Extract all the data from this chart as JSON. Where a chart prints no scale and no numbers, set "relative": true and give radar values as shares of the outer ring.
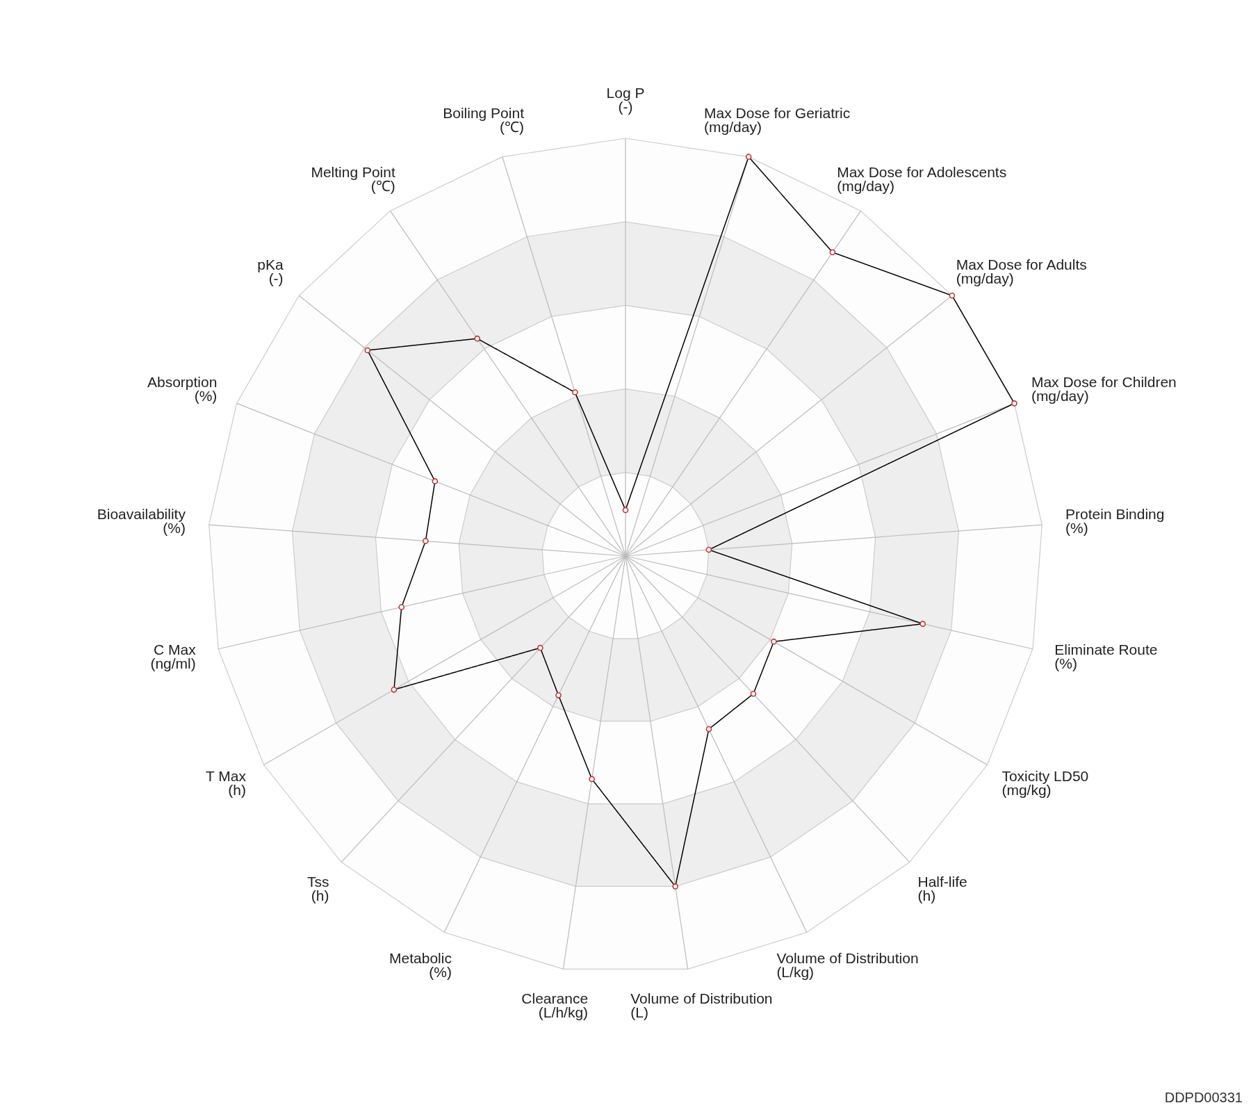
{
  "chart_data": {
    "type": "radar",
    "relative": true,
    "grid": true,
    "marker": "circle",
    "line_style": "solid",
    "categories": [
      "Log P\n(-)",
      "Max Dose for Geriatric\n(mg/day)",
      "Max Dose for Adolescents\n(mg/day)",
      "Max Dose for Adults\n(mg/day)",
      "Max Dose for Children\n(mg/day)",
      "Protein Binding\n(%)",
      "Eliminate Route\n(%)",
      "Toxicity LD50\n(mg/kg)",
      "Half-life\n(h)",
      "Volume of Distribution\n(L/kg)",
      "Volume of Distribution\n(L)",
      "Clearance\n(L/h/kg)",
      "Metabolic\n(%)",
      "Tss\n(h)",
      "T Max\n(h)",
      "C Max\n(ng/ml)",
      "Bioavailability\n(%)",
      "Absorption\n(%)",
      "pKa\n(-)",
      "Melting Point\n(℃)",
      "Boiling Point\n(℃)"
    ],
    "series": [
      {
        "color": "#000000",
        "colors": [
          "#c23531",
          "#c23531",
          "#c23531",
          "#c23531",
          "#c23531",
          "#c23531",
          "#c23531",
          "#c23531",
          "#c23531",
          "#c23531",
          "#c23531",
          "#c23531",
          "#c23531",
          "#c23531",
          "#c23531",
          "#c23531",
          "#c23531",
          "#c23531",
          "#c23531",
          "#c23531",
          "#c23531"
        ],
        "values": [
          0.11,
          1,
          0.88,
          1,
          1,
          0.2,
          0.73,
          0.41,
          0.45,
          0.46,
          0.8,
          0.54,
          0.37,
          0.3,
          0.64,
          0.55,
          0.48,
          0.49,
          0.79,
          0.63,
          0.41
        ]
      }
    ],
    "annotations": [
      "DDPD00331"
    ]
  }
}
